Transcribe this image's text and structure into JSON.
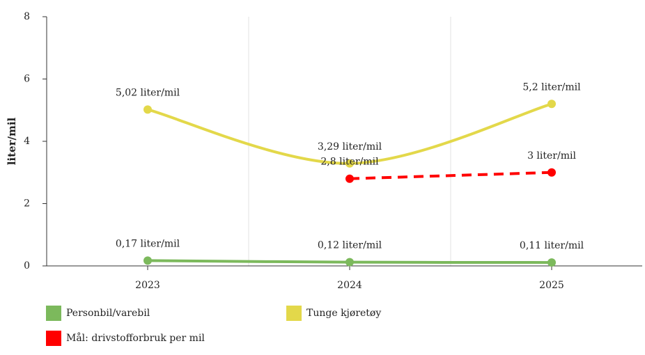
{
  "chart_data": {
    "type": "line",
    "y_label": "liter/mil",
    "categories": [
      "2023",
      "2024",
      "2025"
    ],
    "series": [
      {
        "name": "Personbil/varebil",
        "color": "#7cb95c",
        "values": [
          0.17,
          0.12,
          0.11
        ],
        "value_labels": [
          "0,17 liter/mil",
          "0,12 liter/mil",
          "0,11 liter/mil"
        ]
      },
      {
        "name": "Tunge kjøretøy",
        "color": "#e3d84a",
        "values": [
          5.02,
          3.29,
          5.2
        ],
        "value_labels": [
          "5,02 liter/mil",
          "3,29 liter/mil",
          "5,2 liter/mil"
        ]
      },
      {
        "name": "Mål: drivstofforbruk per mil",
        "color": "#ff0000",
        "dashed": true,
        "values": [
          null,
          2.8,
          3
        ],
        "value_labels": [
          null,
          "2,8 liter/mil",
          "3 liter/mil"
        ]
      }
    ],
    "ylim": [
      0,
      8
    ],
    "yticks": [
      0,
      2,
      4,
      6,
      8
    ]
  }
}
